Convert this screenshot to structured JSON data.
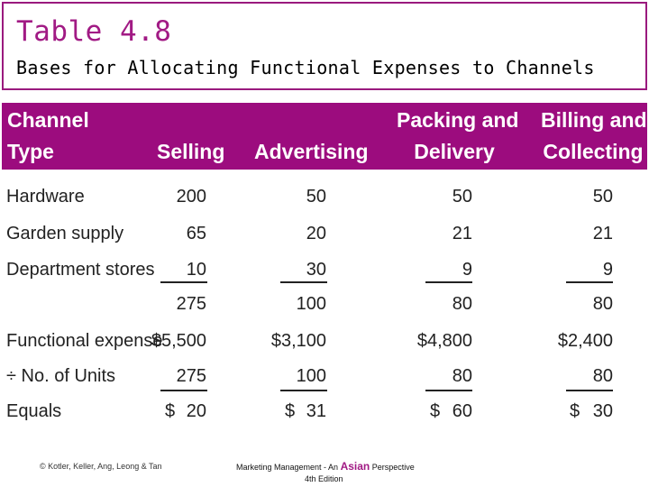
{
  "slide": {
    "title": "Table 4.8",
    "subtitle": "Bases for Allocating Functional Expenses to Channels",
    "accent_color": "#9c0c7e"
  },
  "table": {
    "headers": {
      "channel_type": [
        "Channel",
        "Type"
      ],
      "selling": "Selling",
      "advertising": "Advertising",
      "packing": [
        "Packing and",
        "Delivery"
      ],
      "billing": [
        "Billing and",
        "Collecting"
      ]
    },
    "rows": [
      {
        "label": "Hardware",
        "selling": "200",
        "advertising": "50",
        "packing": "50",
        "billing": "50"
      },
      {
        "label": "Garden supply",
        "selling": "65",
        "advertising": "20",
        "packing": "21",
        "billing": "21"
      },
      {
        "label": "Department stores",
        "selling": "10",
        "advertising": "30",
        "packing": "9",
        "billing": "9"
      },
      {
        "label": "",
        "selling": "275",
        "advertising": "100",
        "packing": "80",
        "billing": "80"
      },
      {
        "label": "Functional expense",
        "selling": "$5,500",
        "advertising": "$3,100",
        "packing": "$4,800",
        "billing": "$2,400"
      },
      {
        "label": "÷ No. of Units",
        "selling": "275",
        "advertising": "100",
        "packing": "80",
        "billing": "80"
      },
      {
        "label": "Equals",
        "selling": "20",
        "advertising": "31",
        "packing": "60",
        "billing": "30"
      }
    ],
    "currency_symbol": "$"
  },
  "footer": {
    "authors": "© Kotler, Keller, Ang, Leong & Tan",
    "book_prefix": "Marketing Management - An",
    "book_asian": "Asian",
    "book_suffix": "Perspective",
    "edition": "4th Edition"
  }
}
